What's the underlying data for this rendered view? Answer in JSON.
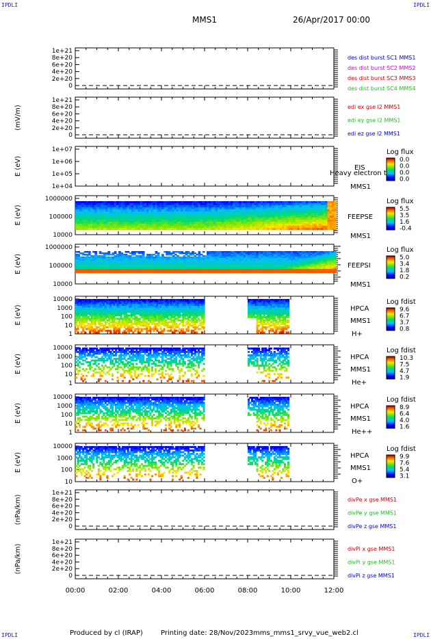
{
  "header": {
    "corner_text": "IPDLI",
    "spacecraft": "MMS1",
    "date": "26/Apr/2017 00:00"
  },
  "footer": {
    "produced_by": "Produced by cl (IRAP)",
    "printing_date": "Printing date: 28/Nov/2023",
    "script": "mms_mms1_srvy_vue_web2.cl"
  },
  "colors": {
    "red": "#cc0000",
    "magenta": "#cc00cc",
    "green": "#22bb22",
    "blue": "#0000cc"
  },
  "chart_data": {
    "type": "multi-panel",
    "x_axis": {
      "start": "00:00",
      "end": "12:00",
      "ticks": [
        "00:00",
        "02:00",
        "04:00",
        "06:00",
        "08:00",
        "10:00",
        "12:00"
      ]
    },
    "panels": [
      {
        "id": "des-dist",
        "type": "line",
        "ylabel": "",
        "ytick_labels": [
          "1e+21",
          "8e+20",
          "6e+20",
          "4e+20",
          "2e+20",
          "0"
        ],
        "legend": [
          {
            "text": "des dist burst SC1 MMS1",
            "color": "#0000cc"
          },
          {
            "text": "des dist burst SC2 MMS2",
            "color": "#cc00cc"
          },
          {
            "text": "des dist burst SC3 MMS3",
            "color": "#cc0000"
          },
          {
            "text": "des dist burst SC4 MMS4",
            "color": "#22bb22"
          }
        ]
      },
      {
        "id": "edi-e",
        "type": "line",
        "ylabel": "(mV/m)",
        "ytick_labels": [
          "1e+21",
          "8e+20",
          "6e+20",
          "4e+20",
          "2e+20",
          "0"
        ],
        "legend": [
          {
            "text": "edi ex gse l2 MMS1",
            "color": "#cc0000"
          },
          {
            "text": "edi ey gse l2 MMS1",
            "color": "#22bb22"
          },
          {
            "text": "edi ez gse l2 MMS1",
            "color": "#0000cc"
          }
        ]
      },
      {
        "id": "eis",
        "type": "heatmap",
        "ylabel": "E (eV)",
        "ytick_labels": [
          "1e+07",
          "1e+06",
          "1e+05",
          "1e+04"
        ],
        "instrument": [
          "EIS",
          "MMS1"
        ],
        "overlay_label": "Heavy electron to",
        "cbar_title": "Log flux",
        "cbar_ticks": [
          "0.0",
          "0.0",
          "0.0",
          "0.0"
        ]
      },
      {
        "id": "feepse",
        "type": "heatmap",
        "ylabel": "E (eV)",
        "ytick_labels": [
          "1000000",
          "100000",
          "10000"
        ],
        "instrument": [
          "FEEPSE",
          "MMS1"
        ],
        "cbar_title": "Log flux",
        "cbar_ticks": [
          "5.5",
          "3.5",
          "1.6",
          "-0.4"
        ]
      },
      {
        "id": "feepsi",
        "type": "heatmap",
        "ylabel": "E (eV)",
        "ytick_labels": [
          "1000000",
          "100000",
          "10000"
        ],
        "instrument": [
          "FEEPSI",
          "MMS1"
        ],
        "cbar_title": "Log flux",
        "cbar_ticks": [
          "5.0",
          "3.4",
          "1.8",
          "0.2"
        ]
      },
      {
        "id": "hpca-h",
        "type": "heatmap",
        "ylabel": "E (eV)",
        "ytick_labels": [
          "10000",
          "1000",
          "100",
          "10",
          "1"
        ],
        "instrument": [
          "HPCA",
          "MMS1",
          "H+"
        ],
        "cbar_title": "Log fdist",
        "cbar_ticks": [
          "9.6",
          "6.7",
          "3.7",
          "0.8"
        ]
      },
      {
        "id": "hpca-he",
        "type": "heatmap",
        "ylabel": "E (eV)",
        "ytick_labels": [
          "10000",
          "1000",
          "100",
          "10",
          "1"
        ],
        "instrument": [
          "HPCA",
          "MMS1",
          "He+"
        ],
        "cbar_title": "Log fdist",
        "cbar_ticks": [
          "10.3",
          "7.5",
          "4.7",
          "1.9"
        ]
      },
      {
        "id": "hpca-hepp",
        "type": "heatmap",
        "ylabel": "E (eV)",
        "ytick_labels": [
          "10000",
          "1000",
          "100",
          "10",
          "1"
        ],
        "instrument": [
          "HPCA",
          "MMS1",
          "He++"
        ],
        "cbar_title": "Log fdist",
        "cbar_ticks": [
          "8.9",
          "6.4",
          "4.0",
          "1.6"
        ]
      },
      {
        "id": "hpca-o",
        "type": "heatmap",
        "ylabel": "E (eV)",
        "ytick_labels": [
          "10000",
          "1000",
          "100",
          "10"
        ],
        "instrument": [
          "HPCA",
          "MMS1",
          "O+"
        ],
        "cbar_title": "Log fdist",
        "cbar_ticks": [
          "9.9",
          "7.6",
          "5.4",
          "3.1"
        ]
      },
      {
        "id": "divpe",
        "type": "line",
        "ylabel": "(nPa/km)",
        "ytick_labels": [
          "1e+21",
          "8e+20",
          "6e+20",
          "4e+20",
          "2e+20",
          "0"
        ],
        "legend": [
          {
            "text": "divPe x gse MMS1",
            "color": "#cc0000"
          },
          {
            "text": "divPe y gse MMS1",
            "color": "#22bb22"
          },
          {
            "text": "divPe z gse MMS1",
            "color": "#0000cc"
          }
        ]
      },
      {
        "id": "divpi",
        "type": "line",
        "ylabel": "(nPa/km)",
        "ytick_labels": [
          "1e+21",
          "8e+20",
          "6e+20",
          "4e+20",
          "2e+20",
          "0"
        ],
        "legend": [
          {
            "text": "divPi x gse MMS1",
            "color": "#cc0000"
          },
          {
            "text": "divPi y gse MMS1",
            "color": "#22bb22"
          },
          {
            "text": "divPi z gse MMS1",
            "color": "#0000cc"
          }
        ]
      }
    ]
  }
}
